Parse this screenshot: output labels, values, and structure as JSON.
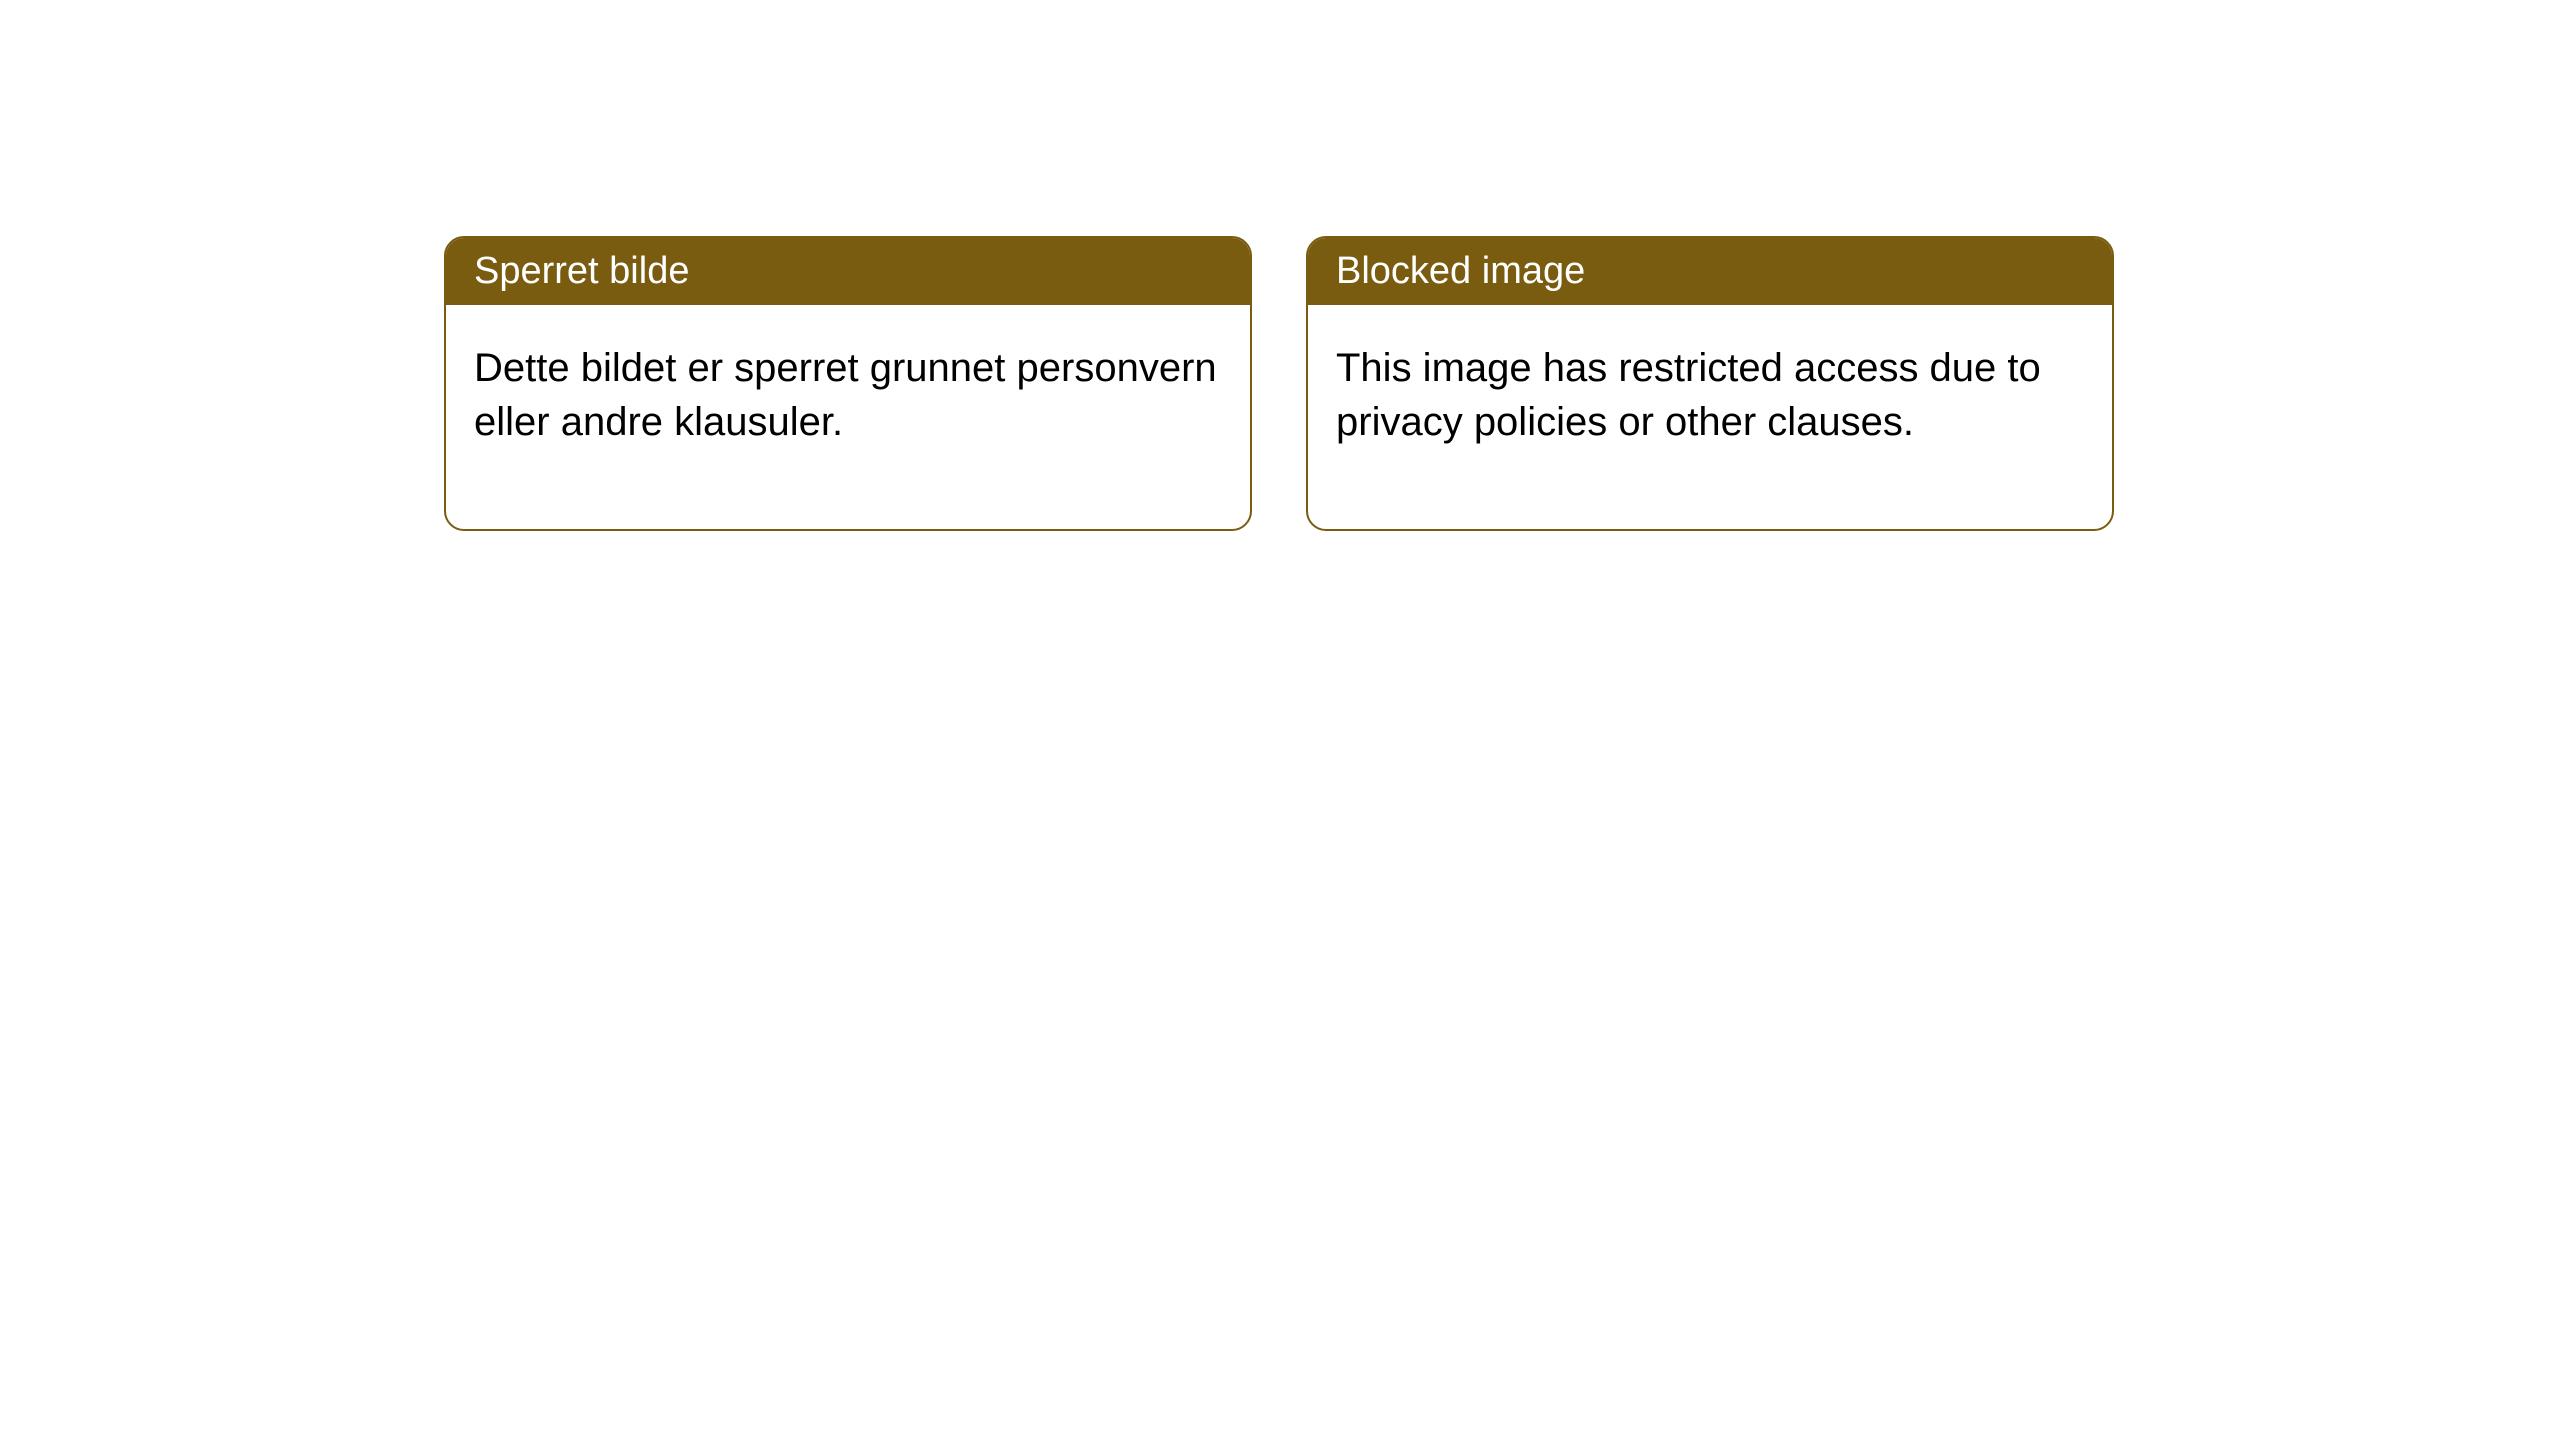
{
  "boxes": [
    {
      "title": "Sperret bilde",
      "body": "Dette bildet er sperret grunnet personvern eller andre klausuler."
    },
    {
      "title": "Blocked image",
      "body": "This image has restricted access due to privacy policies or other clauses."
    }
  ],
  "styling": {
    "header_bg": "#7a5c10",
    "header_color": "#ffffff",
    "border_color": "#7a5c10",
    "body_bg": "#ffffff",
    "body_color": "#000000",
    "border_radius": 20,
    "header_fontsize": 38,
    "body_fontsize": 40
  }
}
